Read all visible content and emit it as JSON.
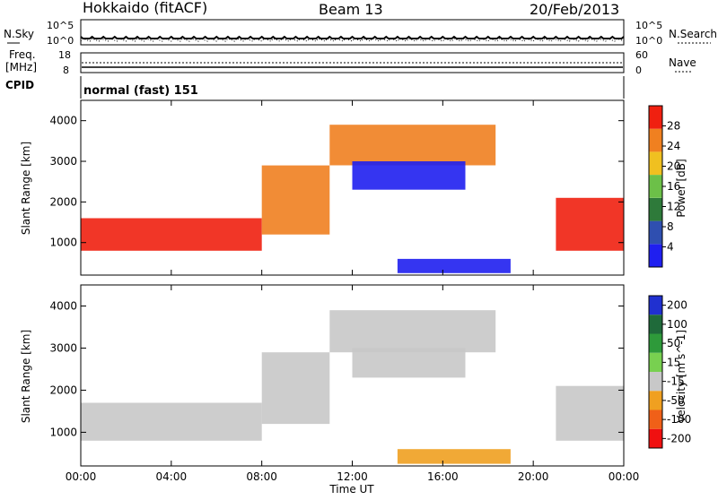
{
  "header": {
    "station": "Hokkaido (fitACF)",
    "beam": "Beam 13",
    "date": "20/Feb/2013"
  },
  "noise_panel": {
    "left_label": "N.Sky",
    "right_label": "N.Search",
    "left_ticks": [
      "10^5",
      "10^0"
    ],
    "right_ticks": [
      "10^5",
      "10^0"
    ]
  },
  "freq_panel": {
    "left_label_1": "Freq.",
    "left_label_2": "[MHz]",
    "right_label": "Nave",
    "left_ticks": [
      "18",
      "8"
    ],
    "right_ticks": [
      "60",
      "0"
    ]
  },
  "cpid": {
    "label": "CPID",
    "text": "normal (fast) 151"
  },
  "chart_data": [
    {
      "type": "heatmap",
      "parameter": "Power",
      "ylabel": "Slant Range [km]",
      "ylim": [
        200,
        4500
      ],
      "yticks": [
        "1000",
        "2000",
        "3000",
        "4000"
      ],
      "colorbar": {
        "label": "Power [dB]",
        "ticks": [
          "4",
          "8",
          "12",
          "16",
          "20",
          "24",
          "28"
        ],
        "colors": [
          "#1f1ff0",
          "#2f4fb0",
          "#2e7a3a",
          "#6cc048",
          "#f0c020",
          "#f08020",
          "#f02010"
        ]
      },
      "regions": [
        {
          "name": "main-echo-band",
          "t_start": "00:00",
          "t_end": "08:00",
          "range_km": [
            800,
            1600
          ],
          "level_db": 28
        },
        {
          "name": "rising-echo-band",
          "t_start": "08:00",
          "t_end": "11:00",
          "range_km": [
            1200,
            2900
          ],
          "level_db": 24
        },
        {
          "name": "upper-echo-band",
          "t_start": "11:00",
          "t_end": "18:20",
          "range_km": [
            2900,
            3900
          ],
          "level_db": 24
        },
        {
          "name": "mid-echo-band",
          "t_start": "12:00",
          "t_end": "17:00",
          "range_km": [
            2300,
            3000
          ],
          "level_db": 6
        },
        {
          "name": "ground-scatter",
          "t_start": "14:00",
          "t_end": "19:00",
          "range_km": [
            250,
            600
          ],
          "level_db": 6
        },
        {
          "name": "evening-echo-band",
          "t_start": "21:00",
          "t_end": "24:00",
          "range_km": [
            800,
            2100
          ],
          "level_db": 28
        }
      ]
    },
    {
      "type": "heatmap",
      "parameter": "Velocity",
      "ylabel": "Slant Range [km]",
      "xlabel": "Time UT",
      "ylim": [
        200,
        4500
      ],
      "yticks": [
        "1000",
        "2000",
        "3000",
        "4000"
      ],
      "xticks": [
        "00:00",
        "04:00",
        "08:00",
        "12:00",
        "16:00",
        "20:00",
        "00:00"
      ],
      "colorbar": {
        "label": "Velocity [m s^-1]",
        "ticks": [
          "200",
          "100",
          "50",
          "15",
          "-15",
          "-50",
          "-100",
          "-200"
        ],
        "colors": [
          "#2030d0",
          "#1f6a3a",
          "#2e9a3a",
          "#78d050",
          "#c8c8c8",
          "#f0a020",
          "#f06018",
          "#f01010"
        ]
      },
      "regions": [
        {
          "name": "main-echo-band",
          "t_start": "00:00",
          "t_end": "08:00",
          "range_km": [
            800,
            1700
          ],
          "velocity": 0
        },
        {
          "name": "rising-echo-band",
          "t_start": "08:00",
          "t_end": "11:00",
          "range_km": [
            1200,
            2900
          ],
          "velocity": 0
        },
        {
          "name": "upper-echo-band",
          "t_start": "11:00",
          "t_end": "18:20",
          "range_km": [
            2900,
            3900
          ],
          "velocity": 0
        },
        {
          "name": "mid-echo-band",
          "t_start": "12:00",
          "t_end": "17:00",
          "range_km": [
            2300,
            3000
          ],
          "velocity": 0
        },
        {
          "name": "ground-scatter",
          "t_start": "14:00",
          "t_end": "19:00",
          "range_km": [
            250,
            600
          ],
          "velocity": -40
        },
        {
          "name": "evening-echo-band",
          "t_start": "21:00",
          "t_end": "24:00",
          "range_km": [
            800,
            2100
          ],
          "velocity": 0
        }
      ]
    }
  ]
}
